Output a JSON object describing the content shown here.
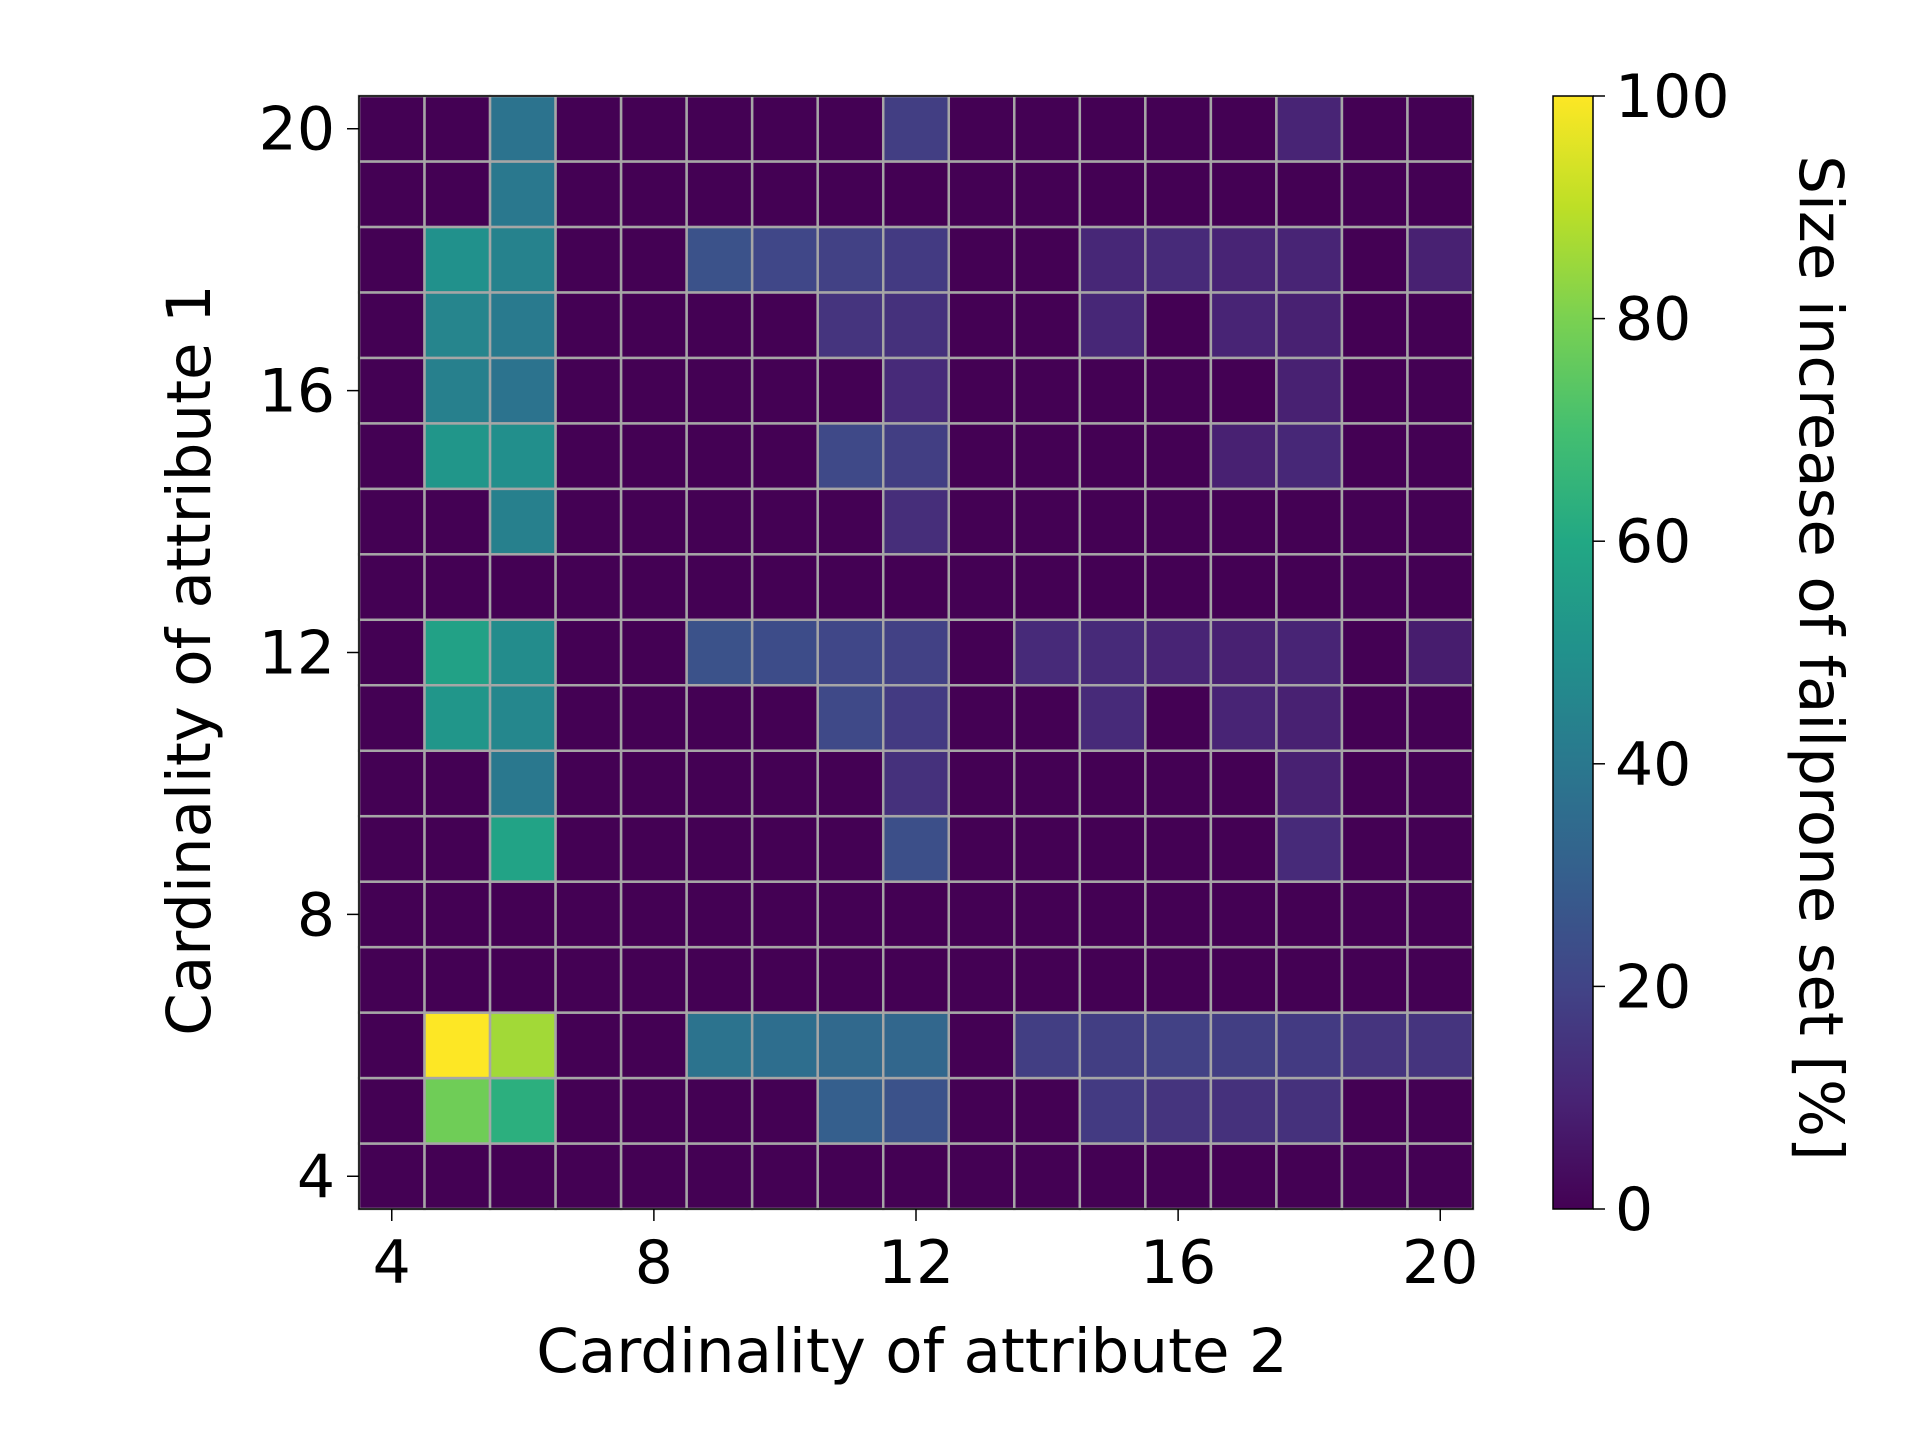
{
  "chart_data": {
    "type": "heatmap",
    "title": "",
    "xlabel": "Cardinality of attribute 2",
    "ylabel": "Cardinality of attribute 1",
    "x": [
      4,
      5,
      6,
      7,
      8,
      9,
      10,
      11,
      12,
      13,
      14,
      15,
      16,
      17,
      18,
      19,
      20
    ],
    "y": [
      4,
      5,
      6,
      7,
      8,
      9,
      10,
      11,
      12,
      13,
      14,
      15,
      16,
      17,
      18,
      19,
      20
    ],
    "xticks": [
      "4",
      "8",
      "12",
      "16",
      "20"
    ],
    "yticks": [
      "4",
      "8",
      "12",
      "16",
      "20"
    ],
    "xlim": [
      3.5,
      20.5
    ],
    "ylim": [
      3.5,
      20.5
    ],
    "colormap": "viridis",
    "grid_color": "#a6a6a6",
    "values": [
      [
        0,
        0,
        0,
        0,
        0,
        0,
        0,
        0,
        0,
        0,
        0,
        0,
        0,
        0,
        0,
        0,
        0
      ],
      [
        0,
        78,
        63,
        0,
        0,
        0,
        0,
        30,
        25,
        0,
        0,
        17,
        15,
        14,
        14,
        0,
        0
      ],
      [
        0,
        100,
        86,
        0,
        0,
        38,
        36,
        34,
        33,
        0,
        18,
        18,
        19,
        18,
        17,
        15,
        15
      ],
      [
        0,
        0,
        0,
        0,
        0,
        0,
        0,
        0,
        0,
        0,
        0,
        0,
        0,
        0,
        0,
        0,
        0
      ],
      [
        0,
        0,
        0,
        0,
        0,
        0,
        0,
        0,
        0,
        0,
        0,
        0,
        0,
        0,
        0,
        0,
        0
      ],
      [
        0,
        0,
        58,
        0,
        0,
        0,
        0,
        0,
        24,
        0,
        0,
        0,
        0,
        0,
        12,
        0,
        0
      ],
      [
        0,
        0,
        40,
        0,
        0,
        0,
        0,
        0,
        14,
        0,
        0,
        0,
        0,
        0,
        9,
        0,
        0
      ],
      [
        0,
        52,
        46,
        0,
        0,
        0,
        0,
        22,
        17,
        0,
        0,
        12,
        0,
        10,
        9,
        0,
        0
      ],
      [
        0,
        57,
        48,
        0,
        0,
        25,
        23,
        21,
        19,
        0,
        12,
        12,
        10,
        9,
        10,
        0,
        8
      ],
      [
        0,
        0,
        0,
        0,
        0,
        0,
        0,
        0,
        0,
        0,
        0,
        0,
        0,
        0,
        0,
        0,
        0
      ],
      [
        0,
        0,
        43,
        0,
        0,
        0,
        0,
        0,
        13,
        0,
        0,
        0,
        0,
        0,
        0,
        0,
        0
      ],
      [
        0,
        52,
        49,
        0,
        0,
        0,
        0,
        22,
        18,
        0,
        0,
        0,
        0,
        9,
        11,
        0,
        0
      ],
      [
        0,
        43,
        38,
        0,
        0,
        0,
        0,
        0,
        12,
        0,
        0,
        0,
        0,
        0,
        9,
        0,
        0
      ],
      [
        0,
        45,
        41,
        0,
        0,
        0,
        0,
        15,
        14,
        0,
        0,
        11,
        0,
        10,
        9,
        0,
        0
      ],
      [
        0,
        50,
        44,
        0,
        0,
        25,
        21,
        19,
        17,
        0,
        0,
        11,
        12,
        10,
        10,
        0,
        9
      ],
      [
        0,
        0,
        40,
        0,
        0,
        0,
        0,
        0,
        0,
        0,
        0,
        0,
        0,
        0,
        0,
        0,
        0
      ],
      [
        0,
        0,
        38,
        0,
        0,
        0,
        0,
        0,
        18,
        0,
        0,
        0,
        0,
        0,
        10,
        0,
        0
      ]
    ],
    "colorbar": {
      "label": "Size increase of failprone set [%]",
      "range": [
        0,
        100
      ],
      "ticks": [
        "0",
        "20",
        "40",
        "60",
        "80",
        "100"
      ]
    }
  }
}
